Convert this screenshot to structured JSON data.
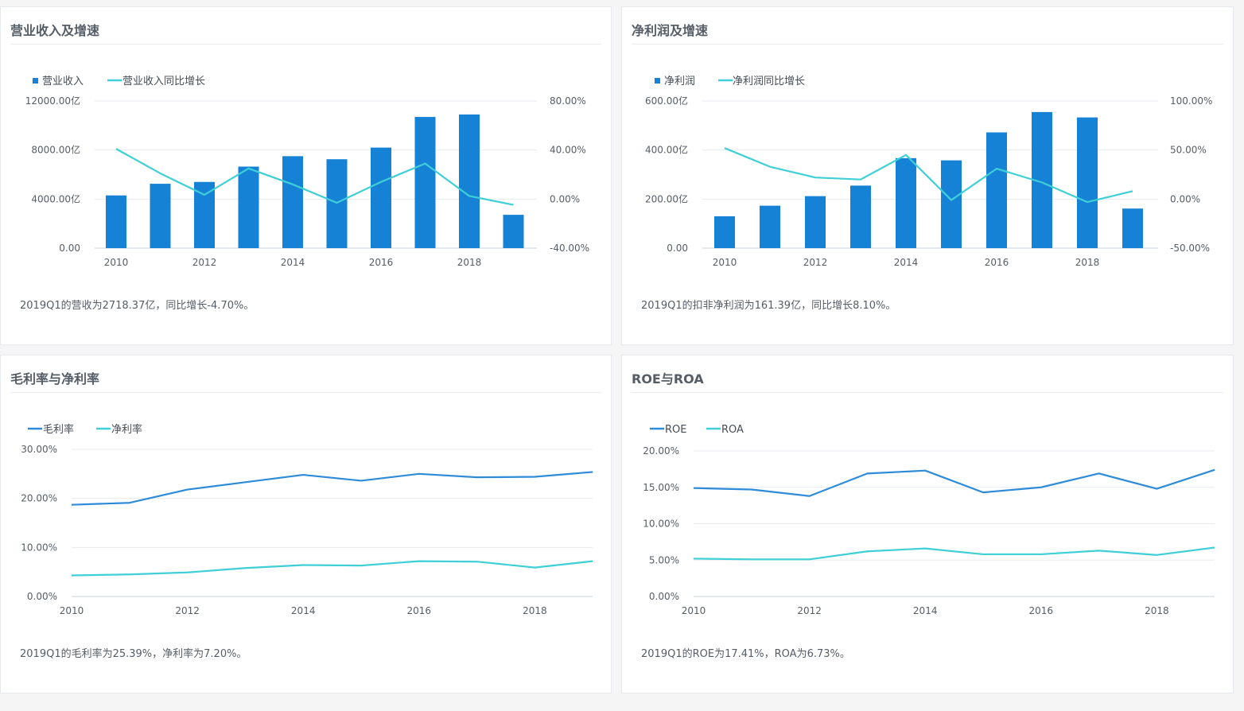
{
  "colors": {
    "bar": "#1582d6",
    "line_primary": "#2e8bd8",
    "line_secondary": "#3fcfd6",
    "grid": "#e7ebf0",
    "axis": "#c9d3e0"
  },
  "panels": [
    {
      "title": "营业收入及增速",
      "summary": "2019Q1的营收为2718.37亿，同比增长-4.70%。"
    },
    {
      "title": "净利润及增速",
      "summary": "2019Q1的扣非净利润为161.39亿，同比增长8.10%。"
    },
    {
      "title": "毛利率与净利率",
      "summary": "2019Q1的毛利率为25.39%，净利率为7.20%。"
    },
    {
      "title": "ROE与ROA",
      "summary": "2019Q1的ROE为17.41%，ROA为6.73%。"
    }
  ],
  "chart_data": [
    {
      "type": "bar+line",
      "title": "营业收入及增速",
      "x": [
        2010,
        2011,
        2012,
        2013,
        2014,
        2015,
        2016,
        2017,
        2018,
        2019
      ],
      "x_tick_labels": [
        "2010",
        "2012",
        "2014",
        "2016",
        "2018"
      ],
      "y_left_ticks": [
        "0.00",
        "4000.00亿",
        "8000.00亿",
        "12000.00亿"
      ],
      "y_right_ticks": [
        "-40.00%",
        "0.00%",
        "40.00%",
        "80.00%"
      ],
      "ylim_left": [
        0,
        12000
      ],
      "ylim_right": [
        -40,
        80
      ],
      "series": [
        {
          "name": "营业收入",
          "kind": "bar",
          "axis": "left",
          "values": [
            4300,
            5250,
            5400,
            6650,
            7500,
            7250,
            8200,
            10700,
            10900,
            2718.37
          ]
        },
        {
          "name": "营业收入同比增长",
          "kind": "line",
          "axis": "right",
          "values": [
            41,
            21,
            3.5,
            25,
            12,
            -3,
            14,
            29,
            2.5,
            -4.7
          ]
        }
      ]
    },
    {
      "type": "bar+line",
      "title": "净利润及增速",
      "x": [
        2010,
        2011,
        2012,
        2013,
        2014,
        2015,
        2016,
        2017,
        2018,
        2019
      ],
      "x_tick_labels": [
        "2010",
        "2012",
        "2014",
        "2016",
        "2018"
      ],
      "y_left_ticks": [
        "0.00",
        "200.00亿",
        "400.00亿",
        "600.00亿"
      ],
      "y_right_ticks": [
        "-50.00%",
        "0.00%",
        "50.00%",
        "100.00%"
      ],
      "ylim_left": [
        0,
        600
      ],
      "ylim_right": [
        -50,
        100
      ],
      "series": [
        {
          "name": "净利润",
          "kind": "bar",
          "axis": "left",
          "values": [
            130,
            173,
            212,
            255,
            367,
            358,
            472,
            555,
            533,
            161.39
          ]
        },
        {
          "name": "净利润同比增长",
          "kind": "line",
          "axis": "right",
          "values": [
            52,
            33,
            22,
            20,
            45,
            -1,
            31,
            17,
            -3,
            8.1
          ]
        }
      ]
    },
    {
      "type": "line",
      "title": "毛利率与净利率",
      "x": [
        2010,
        2011,
        2012,
        2013,
        2014,
        2015,
        2016,
        2017,
        2018,
        2019
      ],
      "x_tick_labels": [
        "2010",
        "2012",
        "2014",
        "2016",
        "2018"
      ],
      "y_left_ticks": [
        "0.00%",
        "10.00%",
        "20.00%",
        "30.00%"
      ],
      "ylim_left": [
        0,
        30
      ],
      "series": [
        {
          "name": "毛利率",
          "kind": "line",
          "axis": "left",
          "values": [
            18.7,
            19.1,
            21.8,
            23.3,
            24.8,
            23.6,
            25.0,
            24.3,
            24.4,
            25.39
          ]
        },
        {
          "name": "净利率",
          "kind": "line",
          "axis": "left",
          "values": [
            4.3,
            4.5,
            4.9,
            5.8,
            6.4,
            6.3,
            7.2,
            7.1,
            5.9,
            7.2
          ]
        }
      ]
    },
    {
      "type": "line",
      "title": "ROE与ROA",
      "x": [
        2010,
        2011,
        2012,
        2013,
        2014,
        2015,
        2016,
        2017,
        2018,
        2019
      ],
      "x_tick_labels": [
        "2010",
        "2012",
        "2014",
        "2016",
        "2018"
      ],
      "y_left_ticks": [
        "0.00%",
        "5.00%",
        "10.00%",
        "15.00%",
        "20.00%"
      ],
      "ylim_left": [
        0,
        20
      ],
      "series": [
        {
          "name": "ROE",
          "kind": "line",
          "axis": "left",
          "values": [
            14.9,
            14.7,
            13.8,
            16.9,
            17.3,
            14.3,
            15.0,
            16.9,
            14.8,
            17.41
          ]
        },
        {
          "name": "ROA",
          "kind": "line",
          "axis": "left",
          "values": [
            5.2,
            5.1,
            5.1,
            6.2,
            6.6,
            5.8,
            5.8,
            6.3,
            5.7,
            6.73
          ]
        }
      ]
    }
  ]
}
